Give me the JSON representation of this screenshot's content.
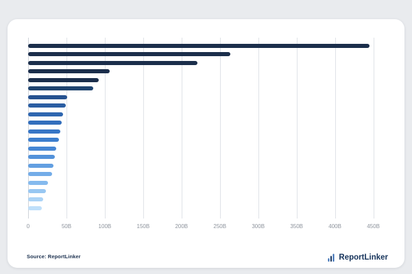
{
  "page": {
    "background": "#e9ebee",
    "card_background": "#ffffff"
  },
  "source_note": "Source: ReportLinker",
  "brand": {
    "name": "ReportLinker",
    "color": "#16335b"
  },
  "chart_data": {
    "type": "bar",
    "orientation": "horizontal",
    "title": "",
    "xlabel": "",
    "ylabel": "",
    "categories": [],
    "values": [
      445,
      264,
      221,
      106,
      92,
      85,
      51,
      49,
      46,
      44,
      42,
      40,
      37,
      35,
      33,
      31,
      26,
      23,
      20,
      18
    ],
    "unit": "B",
    "bar_colors": [
      "#1b2e4b",
      "#1b2e4b",
      "#1b2e4b",
      "#1b2e4b",
      "#1b2e4b",
      "#20446f",
      "#265290",
      "#2a5da2",
      "#2e66b0",
      "#326ebc",
      "#3776c6",
      "#3d7ecd",
      "#4687d4",
      "#5392da",
      "#629fe1",
      "#73ace8",
      "#85baee",
      "#98c7f2",
      "#abd3f6",
      "#bfdffa"
    ],
    "x_ticks": [
      {
        "label": "0",
        "value": 0
      },
      {
        "label": "50B",
        "value": 50
      },
      {
        "label": "100B",
        "value": 100
      },
      {
        "label": "150B",
        "value": 150
      },
      {
        "label": "200B",
        "value": 200
      },
      {
        "label": "250B",
        "value": 250
      },
      {
        "label": "300B",
        "value": 300
      },
      {
        "label": "350B",
        "value": 350
      },
      {
        "label": "400B",
        "value": 400
      },
      {
        "label": "450B",
        "value": 450
      }
    ],
    "xlim": [
      0,
      462
    ],
    "grid": true,
    "legend_position": "none"
  }
}
